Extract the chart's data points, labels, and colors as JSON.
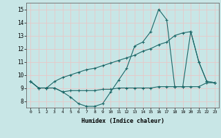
{
  "xlabel": "Humidex (Indice chaleur)",
  "background_color": "#c8e6e6",
  "grid_color": "#e8c8c8",
  "line_color": "#1a6666",
  "xlim": [
    -0.5,
    23.5
  ],
  "ylim": [
    7.5,
    15.5
  ],
  "yticks": [
    8,
    9,
    10,
    11,
    12,
    13,
    14,
    15
  ],
  "xticks": [
    0,
    1,
    2,
    3,
    4,
    5,
    6,
    7,
    8,
    9,
    10,
    11,
    12,
    13,
    14,
    15,
    16,
    17,
    18,
    19,
    20,
    21,
    22,
    23
  ],
  "series": [
    {
      "x": [
        0,
        1,
        2,
        3,
        4,
        5,
        6,
        7,
        8,
        9,
        10,
        11,
        12,
        13,
        14,
        15,
        16,
        17,
        18,
        19,
        20,
        21,
        22,
        23
      ],
      "y": [
        9.5,
        9.0,
        9.0,
        9.0,
        8.7,
        8.3,
        7.8,
        7.6,
        7.6,
        7.8,
        8.7,
        9.6,
        10.5,
        12.2,
        12.5,
        13.3,
        15.0,
        14.2,
        9.1,
        9.1,
        13.3,
        11.0,
        9.5,
        9.4
      ]
    },
    {
      "x": [
        0,
        1,
        2,
        3,
        4,
        5,
        6,
        7,
        8,
        9,
        10,
        11,
        12,
        13,
        14,
        15,
        16,
        17,
        18,
        19,
        20,
        21,
        22,
        23
      ],
      "y": [
        9.5,
        9.0,
        9.0,
        9.0,
        8.7,
        8.8,
        8.8,
        8.8,
        8.8,
        8.9,
        8.9,
        9.0,
        9.0,
        9.0,
        9.0,
        9.0,
        9.1,
        9.1,
        9.1,
        9.1,
        9.1,
        9.1,
        9.4,
        9.4
      ]
    },
    {
      "x": [
        0,
        1,
        2,
        3,
        4,
        5,
        6,
        7,
        8,
        9,
        10,
        11,
        12,
        13,
        14,
        15,
        16,
        17,
        18,
        19,
        20,
        21,
        22,
        23
      ],
      "y": [
        9.5,
        9.0,
        9.0,
        9.5,
        9.8,
        10.0,
        10.2,
        10.4,
        10.5,
        10.7,
        10.9,
        11.1,
        11.3,
        11.5,
        11.8,
        12.0,
        12.3,
        12.5,
        13.0,
        13.2,
        13.3,
        11.0,
        9.5,
        9.4
      ]
    }
  ]
}
